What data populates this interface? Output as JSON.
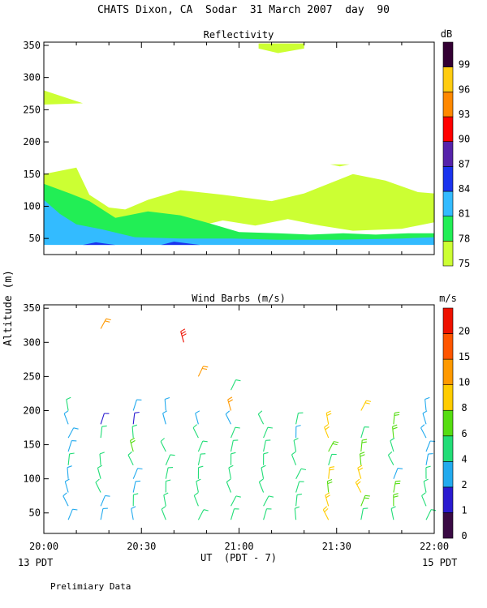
{
  "page": {
    "title": "CHATS Dixon, CA  Sodar  31 March 2007  day  90",
    "footnote": "Prelimiary Data",
    "ylabel": "Altitude (m)",
    "xlabel": "UT  (PDT - 7)",
    "left_date": "13 PDT",
    "right_date": "15 PDT"
  },
  "chart_data": [
    {
      "type": "heatmap",
      "title": "Reflectivity",
      "x_ticks": [
        "20:00",
        "20:30",
        "21:00",
        "21:30",
        "22:00"
      ],
      "y_ticks": [
        50,
        100,
        150,
        200,
        250,
        300,
        350
      ],
      "ylim": [
        25,
        355
      ],
      "xlim_minutes": [
        0,
        120
      ],
      "colorbar": {
        "unit": "dB",
        "levels": [
          75,
          78,
          81,
          84,
          87,
          90,
          93,
          96,
          99
        ],
        "colors": [
          "#ccff33",
          "#22ee55",
          "#33bbff",
          "#1a33ee",
          "#5522aa",
          "#ff0000",
          "#ff8800",
          "#ffcc11",
          "#330033"
        ]
      },
      "regions": [
        {
          "level": 75,
          "points": [
            [
              0,
              150
            ],
            [
              10,
              160
            ],
            [
              14,
              118
            ],
            [
              20,
              98
            ],
            [
              25,
              95
            ],
            [
              32,
              110
            ],
            [
              42,
              125
            ],
            [
              55,
              118
            ],
            [
              70,
              108
            ],
            [
              80,
              120
            ],
            [
              95,
              150
            ],
            [
              105,
              140
            ],
            [
              115,
              122
            ],
            [
              120,
              120
            ],
            [
              120,
              75
            ],
            [
              110,
              65
            ],
            [
              95,
              62
            ],
            [
              85,
              70
            ],
            [
              75,
              80
            ],
            [
              65,
              70
            ],
            [
              55,
              78
            ],
            [
              40,
              60
            ],
            [
              25,
              55
            ],
            [
              10,
              60
            ],
            [
              0,
              65
            ]
          ]
        },
        {
          "level": 75,
          "points": [
            [
              0,
              258
            ],
            [
              0,
              280
            ],
            [
              12,
              260
            ]
          ]
        },
        {
          "level": 75,
          "points": [
            [
              66,
              345
            ],
            [
              66,
              353
            ],
            [
              80,
              353
            ],
            [
              80,
              345
            ],
            [
              72,
              338
            ]
          ]
        },
        {
          "level": 75,
          "points": [
            [
              88,
              165
            ],
            [
              91,
              162
            ],
            [
              94,
              165
            ]
          ]
        },
        {
          "level": 78,
          "points": [
            [
              0,
              135
            ],
            [
              8,
              120
            ],
            [
              14,
              108
            ],
            [
              22,
              82
            ],
            [
              32,
              92
            ],
            [
              42,
              86
            ],
            [
              52,
              72
            ],
            [
              60,
              60
            ],
            [
              72,
              58
            ],
            [
              82,
              56
            ],
            [
              92,
              58
            ],
            [
              102,
              56
            ],
            [
              112,
              58
            ],
            [
              120,
              58
            ],
            [
              120,
              45
            ],
            [
              100,
              45
            ],
            [
              80,
              47
            ],
            [
              60,
              45
            ],
            [
              40,
              45
            ],
            [
              20,
              48
            ],
            [
              5,
              42
            ],
            [
              0,
              45
            ]
          ]
        },
        {
          "level": 81,
          "points": [
            [
              0,
              110
            ],
            [
              5,
              88
            ],
            [
              10,
              72
            ],
            [
              18,
              64
            ],
            [
              28,
              52
            ],
            [
              42,
              50
            ],
            [
              58,
              50
            ],
            [
              72,
              48
            ],
            [
              90,
              48
            ],
            [
              110,
              50
            ],
            [
              120,
              52
            ],
            [
              120,
              40
            ],
            [
              0,
              40
            ]
          ]
        },
        {
          "level": 84,
          "points": [
            [
              12,
              40
            ],
            [
              16,
              44
            ],
            [
              22,
              40
            ]
          ]
        },
        {
          "level": 84,
          "points": [
            [
              36,
              40
            ],
            [
              40,
              45
            ],
            [
              48,
              40
            ]
          ]
        }
      ]
    },
    {
      "type": "scatter",
      "title": "Wind Barbs (m/s)",
      "x_ticks": [
        "20:00",
        "20:30",
        "21:00",
        "21:30",
        "22:00"
      ],
      "y_ticks": [
        50,
        100,
        150,
        200,
        250,
        300,
        350
      ],
      "ylim": [
        20,
        355
      ],
      "xlim_minutes": [
        0,
        120
      ],
      "colorbar": {
        "unit": "m/s",
        "levels": [
          0,
          1,
          2,
          4,
          6,
          8,
          10,
          15,
          20
        ],
        "colors": [
          "#3a0a44",
          "#2a1ad0",
          "#22aaee",
          "#22dd77",
          "#55dd11",
          "#ffcc00",
          "#ff9900",
          "#ff5500",
          "#ee1100"
        ]
      },
      "columns_minutes": [
        7.5,
        17.5,
        27.5,
        37.5,
        47.5,
        57.5,
        67.5,
        77.5,
        87.5,
        97.5,
        107.5,
        117.5
      ],
      "barbs": [
        {
          "t": 7.5,
          "z": 40,
          "s": 2
        },
        {
          "t": 7.5,
          "z": 60,
          "s": 3
        },
        {
          "t": 7.5,
          "z": 80,
          "s": 2
        },
        {
          "t": 7.5,
          "z": 100,
          "s": 2
        },
        {
          "t": 7.5,
          "z": 120,
          "s": 4
        },
        {
          "t": 7.5,
          "z": 140,
          "s": 3
        },
        {
          "t": 7.5,
          "z": 160,
          "s": 3
        },
        {
          "t": 7.5,
          "z": 180,
          "s": 3
        },
        {
          "t": 7.5,
          "z": 200,
          "s": 4
        },
        {
          "t": 17.5,
          "z": 40,
          "s": 3
        },
        {
          "t": 17.5,
          "z": 60,
          "s": 3
        },
        {
          "t": 17.5,
          "z": 80,
          "s": 4
        },
        {
          "t": 17.5,
          "z": 100,
          "s": 5
        },
        {
          "t": 17.5,
          "z": 120,
          "s": 5
        },
        {
          "t": 17.5,
          "z": 160,
          "s": 5
        },
        {
          "t": 17.5,
          "z": 180,
          "s": 1
        },
        {
          "t": 17.5,
          "z": 320,
          "s": 10
        },
        {
          "t": 27.5,
          "z": 40,
          "s": 3
        },
        {
          "t": 27.5,
          "z": 60,
          "s": 4
        },
        {
          "t": 27.5,
          "z": 80,
          "s": 3
        },
        {
          "t": 27.5,
          "z": 100,
          "s": 3
        },
        {
          "t": 27.5,
          "z": 120,
          "s": 5
        },
        {
          "t": 27.5,
          "z": 140,
          "s": 6
        },
        {
          "t": 27.5,
          "z": 160,
          "s": 5
        },
        {
          "t": 27.5,
          "z": 180,
          "s": 1
        },
        {
          "t": 27.5,
          "z": 200,
          "s": 2
        },
        {
          "t": 37.5,
          "z": 40,
          "s": 4
        },
        {
          "t": 37.5,
          "z": 60,
          "s": 4
        },
        {
          "t": 37.5,
          "z": 80,
          "s": 4
        },
        {
          "t": 37.5,
          "z": 100,
          "s": 5
        },
        {
          "t": 37.5,
          "z": 120,
          "s": 5
        },
        {
          "t": 37.5,
          "z": 140,
          "s": 5
        },
        {
          "t": 37.5,
          "z": 180,
          "s": 3
        },
        {
          "t": 37.5,
          "z": 200,
          "s": 2
        },
        {
          "t": 43,
          "z": 300,
          "s": 20
        },
        {
          "t": 47.5,
          "z": 40,
          "s": 5
        },
        {
          "t": 47.5,
          "z": 60,
          "s": 4
        },
        {
          "t": 47.5,
          "z": 80,
          "s": 4
        },
        {
          "t": 47.5,
          "z": 100,
          "s": 5
        },
        {
          "t": 47.5,
          "z": 120,
          "s": 5
        },
        {
          "t": 47.5,
          "z": 140,
          "s": 5
        },
        {
          "t": 47.5,
          "z": 160,
          "s": 4
        },
        {
          "t": 47.5,
          "z": 180,
          "s": 3
        },
        {
          "t": 47.5,
          "z": 250,
          "s": 10
        },
        {
          "t": 57.5,
          "z": 40,
          "s": 4
        },
        {
          "t": 57.5,
          "z": 60,
          "s": 4
        },
        {
          "t": 57.5,
          "z": 80,
          "s": 4
        },
        {
          "t": 57.5,
          "z": 100,
          "s": 4
        },
        {
          "t": 57.5,
          "z": 120,
          "s": 5
        },
        {
          "t": 57.5,
          "z": 140,
          "s": 5
        },
        {
          "t": 57.5,
          "z": 160,
          "s": 5
        },
        {
          "t": 57.5,
          "z": 180,
          "s": 3
        },
        {
          "t": 57.5,
          "z": 200,
          "s": 10
        },
        {
          "t": 57.5,
          "z": 230,
          "s": 4
        },
        {
          "t": 67.5,
          "z": 40,
          "s": 4
        },
        {
          "t": 67.5,
          "z": 60,
          "s": 4
        },
        {
          "t": 67.5,
          "z": 80,
          "s": 5
        },
        {
          "t": 67.5,
          "z": 100,
          "s": 5
        },
        {
          "t": 67.5,
          "z": 120,
          "s": 5
        },
        {
          "t": 67.5,
          "z": 140,
          "s": 5
        },
        {
          "t": 67.5,
          "z": 160,
          "s": 4
        },
        {
          "t": 67.5,
          "z": 180,
          "s": 4
        },
        {
          "t": 77.5,
          "z": 40,
          "s": 4
        },
        {
          "t": 77.5,
          "z": 60,
          "s": 4
        },
        {
          "t": 77.5,
          "z": 80,
          "s": 5
        },
        {
          "t": 77.5,
          "z": 100,
          "s": 5
        },
        {
          "t": 77.5,
          "z": 120,
          "s": 5
        },
        {
          "t": 77.5,
          "z": 140,
          "s": 5
        },
        {
          "t": 77.5,
          "z": 160,
          "s": 3
        },
        {
          "t": 77.5,
          "z": 180,
          "s": 4
        },
        {
          "t": 87.5,
          "z": 40,
          "s": 8
        },
        {
          "t": 87.5,
          "z": 60,
          "s": 8
        },
        {
          "t": 87.5,
          "z": 80,
          "s": 6
        },
        {
          "t": 87.5,
          "z": 100,
          "s": 8
        },
        {
          "t": 87.5,
          "z": 120,
          "s": 5
        },
        {
          "t": 87.5,
          "z": 140,
          "s": 6
        },
        {
          "t": 87.5,
          "z": 160,
          "s": 8
        },
        {
          "t": 87.5,
          "z": 180,
          "s": 8
        },
        {
          "t": 97.5,
          "z": 40,
          "s": 5
        },
        {
          "t": 97.5,
          "z": 60,
          "s": 6
        },
        {
          "t": 97.5,
          "z": 80,
          "s": 8
        },
        {
          "t": 97.5,
          "z": 100,
          "s": 8
        },
        {
          "t": 97.5,
          "z": 120,
          "s": 6
        },
        {
          "t": 97.5,
          "z": 140,
          "s": 6
        },
        {
          "t": 97.5,
          "z": 160,
          "s": 5
        },
        {
          "t": 97.5,
          "z": 200,
          "s": 9
        },
        {
          "t": 107.5,
          "z": 40,
          "s": 5
        },
        {
          "t": 107.5,
          "z": 60,
          "s": 6
        },
        {
          "t": 107.5,
          "z": 80,
          "s": 6
        },
        {
          "t": 107.5,
          "z": 100,
          "s": 2
        },
        {
          "t": 107.5,
          "z": 120,
          "s": 4
        },
        {
          "t": 107.5,
          "z": 140,
          "s": 5
        },
        {
          "t": 107.5,
          "z": 160,
          "s": 6
        },
        {
          "t": 107.5,
          "z": 180,
          "s": 6
        },
        {
          "t": 117.5,
          "z": 40,
          "s": 5
        },
        {
          "t": 117.5,
          "z": 60,
          "s": 4
        },
        {
          "t": 117.5,
          "z": 80,
          "s": 4
        },
        {
          "t": 117.5,
          "z": 100,
          "s": 4
        },
        {
          "t": 117.5,
          "z": 120,
          "s": 3
        },
        {
          "t": 117.5,
          "z": 140,
          "s": 2
        },
        {
          "t": 117.5,
          "z": 160,
          "s": 3
        },
        {
          "t": 117.5,
          "z": 180,
          "s": 2
        },
        {
          "t": 117.5,
          "z": 200,
          "s": 2
        }
      ]
    }
  ]
}
